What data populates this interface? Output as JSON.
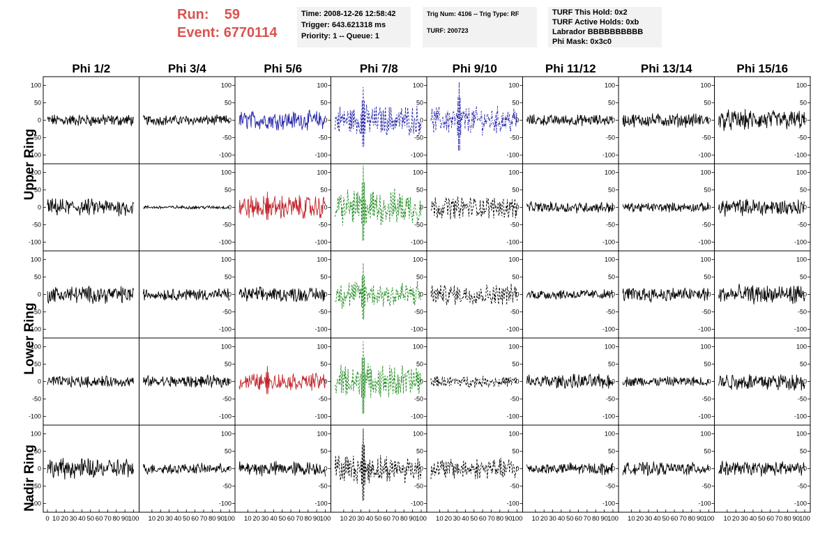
{
  "header": {
    "run_label": "Run:",
    "run_value": "59",
    "event_label": "Event:",
    "event_value": "6770114",
    "time": "Time: 2008-12-26 12:58:42",
    "trigger": "Trigger: 643.621318 ms",
    "priority": "Priority: 1 -- Queue: 1",
    "trig_num": "Trig Num: 4106 -- Trig Type: RF",
    "turf": "TURF: 200723",
    "turf_hold": "TURF This Hold: 0x2",
    "turf_active": "TURF Active Holds: 0xb",
    "labrador": "Labrador BBBBBBBBBB",
    "phi_mask": "Phi Mask: 0x3c0"
  },
  "chart_data": {
    "type": "line",
    "title": "",
    "columns": [
      "Phi 1/2",
      "Phi 3/4",
      "Phi 5/6",
      "Phi 7/8",
      "Phi 9/10",
      "Phi 11/12",
      "Phi 13/14",
      "Phi 15/16"
    ],
    "rows": [
      "Upper Ring",
      "Upper Ring",
      "Lower Ring",
      "Lower Ring",
      "Nadir Ring"
    ],
    "row_labels": [
      "Upper Ring",
      "Lower Ring",
      "Nadir Ring"
    ],
    "xlim": [
      0,
      100
    ],
    "ylim": [
      -125,
      125
    ],
    "yticks": [
      -100,
      -50,
      0,
      50,
      100
    ],
    "xticks": [
      0,
      10,
      20,
      30,
      40,
      50,
      60,
      70,
      80,
      90,
      100
    ],
    "colors": {
      "normal": "#000000",
      "blue": "#1f1fa8",
      "red": "#c0232a",
      "green": "#1e8a1e"
    },
    "panels": [
      [
        {
          "color": "normal",
          "style": "solid",
          "amp": 14
        },
        {
          "color": "normal",
          "style": "solid",
          "amp": 12
        },
        {
          "color": "blue",
          "style": "solid",
          "amp": 22
        },
        {
          "color": "blue",
          "style": "dashed",
          "amp": 35,
          "spike": 95
        },
        {
          "color": "blue",
          "style": "dashdot",
          "amp": 32,
          "spike": 110
        },
        {
          "color": "normal",
          "style": "solid",
          "amp": 13
        },
        {
          "color": "normal",
          "style": "solid",
          "amp": 16
        },
        {
          "color": "normal",
          "style": "solid",
          "amp": 24
        }
      ],
      [
        {
          "color": "normal",
          "style": "solid",
          "amp": 20
        },
        {
          "color": "normal",
          "style": "solid",
          "amp": 4
        },
        {
          "color": "red",
          "style": "solid",
          "amp": 28,
          "spike": 45
        },
        {
          "color": "green",
          "style": "dashed",
          "amp": 42,
          "spike": 120
        },
        {
          "color": "normal",
          "style": "dashed",
          "amp": 26
        },
        {
          "color": "normal",
          "style": "solid",
          "amp": 13
        },
        {
          "color": "normal",
          "style": "solid",
          "amp": 11
        },
        {
          "color": "normal",
          "style": "solid",
          "amp": 20
        }
      ],
      [
        {
          "color": "normal",
          "style": "solid",
          "amp": 20
        },
        {
          "color": "normal",
          "style": "solid",
          "amp": 14
        },
        {
          "color": "normal",
          "style": "solid",
          "amp": 17
        },
        {
          "color": "green",
          "style": "dashed",
          "amp": 32,
          "spike": 90
        },
        {
          "color": "normal",
          "style": "dashed",
          "amp": 24
        },
        {
          "color": "normal",
          "style": "solid",
          "amp": 12
        },
        {
          "color": "normal",
          "style": "solid",
          "amp": 17
        },
        {
          "color": "normal",
          "style": "solid",
          "amp": 22
        }
      ],
      [
        {
          "color": "normal",
          "style": "solid",
          "amp": 13
        },
        {
          "color": "normal",
          "style": "solid",
          "amp": 14
        },
        {
          "color": "red",
          "style": "solid",
          "amp": 20,
          "spike": 45
        },
        {
          "color": "green",
          "style": "dashed",
          "amp": 40,
          "spike": 115
        },
        {
          "color": "normal",
          "style": "dashed",
          "amp": 13
        },
        {
          "color": "normal",
          "style": "solid",
          "amp": 17
        },
        {
          "color": "normal",
          "style": "solid",
          "amp": 12
        },
        {
          "color": "normal",
          "style": "solid",
          "amp": 20
        }
      ],
      [
        {
          "color": "normal",
          "style": "solid",
          "amp": 24
        },
        {
          "color": "normal",
          "style": "solid",
          "amp": 12
        },
        {
          "color": "normal",
          "style": "solid",
          "amp": 17
        },
        {
          "color": "normal",
          "style": "dashed",
          "amp": 32,
          "spike": 115
        },
        {
          "color": "normal",
          "style": "dashed",
          "amp": 24
        },
        {
          "color": "normal",
          "style": "solid",
          "amp": 14
        },
        {
          "color": "normal",
          "style": "solid",
          "amp": 15
        },
        {
          "color": "normal",
          "style": "solid",
          "amp": 17
        }
      ]
    ]
  }
}
